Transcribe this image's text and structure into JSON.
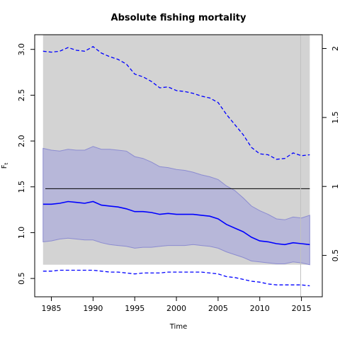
{
  "chart_data": {
    "type": "line",
    "title": "Absolute fishing mortality",
    "xlabel": "Time",
    "ylabel": "F",
    "ylabel_subscript": "t",
    "xlim": [
      1983,
      2017.5
    ],
    "ylim": [
      0.3,
      3.16
    ],
    "y2lim": [
      0.2,
      2.1
    ],
    "x_ticks": [
      1985,
      1990,
      1995,
      2000,
      2005,
      2010,
      2015
    ],
    "y_ticks": [
      0.5,
      1.0,
      1.5,
      2.0,
      2.5,
      3.0
    ],
    "y_tick_labels": [
      "0.5",
      "1.0",
      "1.5",
      "2.0",
      "2.5",
      "3.0"
    ],
    "y2_ticks": [
      0.5,
      1,
      1.5,
      2
    ],
    "y2_tick_labels": [
      "0.5",
      "1",
      "1.5",
      "2"
    ],
    "shaded_region": {
      "x": [
        1984,
        2016
      ],
      "y": [
        0.65,
        3.16
      ]
    },
    "reference_line_y": 1.48,
    "vertical_line_x": 2014.9,
    "x": [
      1984,
      1985,
      1986,
      1987,
      1988,
      1989,
      1990,
      1991,
      1992,
      1993,
      1994,
      1995,
      1996,
      1997,
      1998,
      1999,
      2000,
      2001,
      2002,
      2003,
      2004,
      2005,
      2006,
      2007,
      2008,
      2009,
      2010,
      2011,
      2012,
      2013,
      2014,
      2015,
      2016
    ],
    "series": [
      {
        "role": "estimate",
        "style": "solid",
        "values": [
          1.31,
          1.31,
          1.32,
          1.34,
          1.33,
          1.32,
          1.34,
          1.3,
          1.29,
          1.28,
          1.26,
          1.23,
          1.23,
          1.22,
          1.2,
          1.21,
          1.2,
          1.2,
          1.2,
          1.19,
          1.18,
          1.15,
          1.09,
          1.05,
          1.01,
          0.95,
          0.91,
          0.9,
          0.88,
          0.87,
          0.89,
          0.88,
          0.87
        ]
      },
      {
        "role": "ci-lower",
        "style": "band",
        "values": [
          0.9,
          0.91,
          0.93,
          0.94,
          0.93,
          0.92,
          0.92,
          0.89,
          0.87,
          0.86,
          0.85,
          0.83,
          0.84,
          0.84,
          0.85,
          0.86,
          0.86,
          0.86,
          0.87,
          0.86,
          0.85,
          0.83,
          0.79,
          0.76,
          0.73,
          0.69,
          0.68,
          0.67,
          0.66,
          0.66,
          0.68,
          0.67,
          0.65
        ]
      },
      {
        "role": "ci-upper",
        "style": "band",
        "values": [
          1.92,
          1.9,
          1.89,
          1.91,
          1.9,
          1.9,
          1.94,
          1.91,
          1.91,
          1.9,
          1.89,
          1.83,
          1.81,
          1.77,
          1.72,
          1.71,
          1.69,
          1.68,
          1.66,
          1.63,
          1.61,
          1.58,
          1.51,
          1.46,
          1.38,
          1.29,
          1.24,
          1.2,
          1.15,
          1.14,
          1.17,
          1.16,
          1.19
        ]
      },
      {
        "role": "relative-upper",
        "style": "dashed",
        "values": [
          2.98,
          2.97,
          2.98,
          3.02,
          2.99,
          2.98,
          3.03,
          2.96,
          2.92,
          2.89,
          2.84,
          2.73,
          2.7,
          2.65,
          2.58,
          2.59,
          2.55,
          2.54,
          2.52,
          2.49,
          2.47,
          2.42,
          2.29,
          2.18,
          2.07,
          1.93,
          1.86,
          1.85,
          1.8,
          1.81,
          1.87,
          1.84,
          1.85
        ]
      },
      {
        "role": "relative-lower",
        "style": "dashed",
        "values": [
          0.58,
          0.58,
          0.59,
          0.59,
          0.59,
          0.59,
          0.59,
          0.58,
          0.57,
          0.57,
          0.56,
          0.55,
          0.56,
          0.56,
          0.56,
          0.57,
          0.57,
          0.57,
          0.57,
          0.57,
          0.56,
          0.55,
          0.52,
          0.51,
          0.49,
          0.47,
          0.46,
          0.44,
          0.43,
          0.43,
          0.43,
          0.43,
          0.42
        ]
      }
    ],
    "colors": {
      "line": "#0000ff",
      "band_fill": "#b7b7d9",
      "band_stroke": "#8c8cd0",
      "background_region": "#d3d3d3",
      "reference_line": "#000000",
      "vertical_line": "#c0c0c0"
    },
    "grid": false,
    "legend": "none"
  }
}
